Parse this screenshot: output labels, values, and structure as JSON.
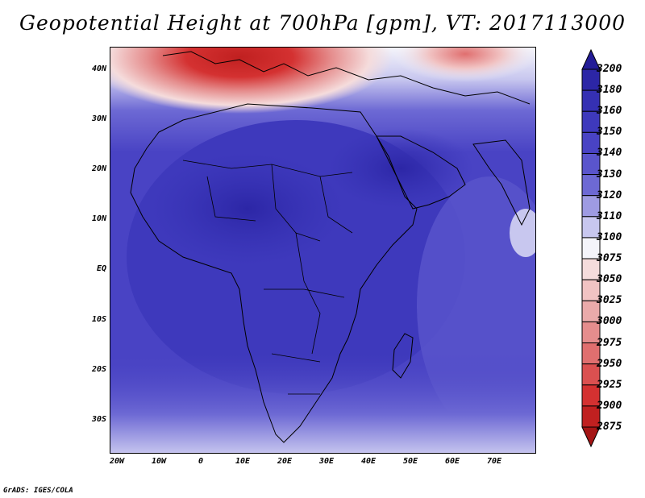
{
  "title": "Geopotential Height at 700hPa [gpm], VT: 2017113000",
  "credit": "GrADS: IGES/COLA",
  "lat_labels": [
    "40N",
    "30N",
    "20N",
    "10N",
    "EQ",
    "10S",
    "20S",
    "30S"
  ],
  "lon_labels": [
    "20W",
    "10W",
    "0",
    "10E",
    "20E",
    "30E",
    "40E",
    "50E",
    "60E",
    "70E"
  ],
  "legend": {
    "levels": [
      "3200",
      "3180",
      "3160",
      "3150",
      "3140",
      "3130",
      "3120",
      "3110",
      "3100",
      "3075",
      "3050",
      "3025",
      "3000",
      "2975",
      "2950",
      "2925",
      "2900",
      "2875"
    ],
    "colors": [
      "#231c97",
      "#2c26a6",
      "#3530b3",
      "#3e39bc",
      "#4943c4",
      "#5a55cc",
      "#6d69d4",
      "#9e9be2",
      "#c8c7ef",
      "#f4f4fa",
      "#f5dcdc",
      "#f1c3c3",
      "#eaaaaa",
      "#e58d8d",
      "#e06f6f",
      "#db5050",
      "#d43131",
      "#c02020",
      "#a51515"
    ]
  }
}
